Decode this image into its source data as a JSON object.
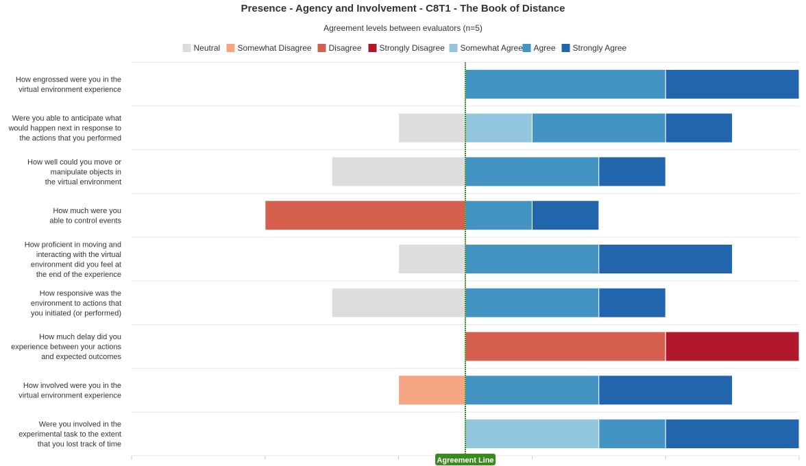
{
  "chart_data": {
    "type": "bar",
    "orientation": "horizontal",
    "stacked": true,
    "diverging": true,
    "title": "Presence - Agency and Involvement - C8T1 - The Book of Distance",
    "subtitle": "Agreement levels between evaluators (n=5)",
    "legend_position": "top",
    "grid": true,
    "xlim": [
      -5,
      5
    ],
    "center_line_label": "Agreement Line",
    "categories": [
      [
        "How engrossed were you in the",
        "virtual environment experience"
      ],
      [
        "Were you able to anticipate what",
        "would happen next in response to",
        "the actions that you performed"
      ],
      [
        "How well could you move or",
        "manipulate objects in",
        "the virtual environment"
      ],
      [
        "How much were you",
        "able to control events"
      ],
      [
        "How proficient in moving and",
        "interacting with the virtual",
        "environment did you feel at",
        "the end of the experience"
      ],
      [
        "How responsive was the",
        "environment to actions that",
        "you initiated (or performed)"
      ],
      [
        "How much delay did you",
        "experience between your actions",
        "and expected outcomes"
      ],
      [
        "How involved were you in the",
        "virtual environment experience"
      ],
      [
        "Were you involved in the",
        "experimental task to the extent",
        "that you lost track of time"
      ]
    ],
    "series": [
      {
        "name": "Neutral",
        "side": "left",
        "color": "#dddddd",
        "values": [
          0,
          1,
          2,
          0,
          1,
          2,
          0,
          0,
          0
        ]
      },
      {
        "name": "Somewhat Disagree",
        "side": "left",
        "color": "#f4a582",
        "values": [
          0,
          0,
          0,
          0,
          0,
          0,
          0,
          1,
          0
        ]
      },
      {
        "name": "Disagree",
        "side": "left",
        "color": "#d6604d",
        "values": [
          0,
          0,
          0,
          3,
          0,
          0,
          0,
          0,
          0
        ]
      },
      {
        "name": "Strongly Disagree",
        "side": "left",
        "color": "#b2182b",
        "values": [
          0,
          0,
          0,
          0,
          0,
          0,
          0,
          0,
          0
        ]
      },
      {
        "name": "Somewhat Agree",
        "side": "right",
        "color": "#92c5de",
        "values": [
          0,
          1,
          0,
          0,
          0,
          0,
          0,
          0,
          2
        ]
      },
      {
        "name": "Agree",
        "side": "right",
        "color": "#4393c3",
        "values": [
          3,
          2,
          2,
          1,
          2,
          2,
          0,
          2,
          1
        ]
      },
      {
        "name": "Strongly Agree",
        "side": "right",
        "color": "#2166ac",
        "values": [
          2,
          1,
          1,
          1,
          2,
          1,
          0,
          2,
          2
        ]
      }
    ],
    "right_overrides": [
      {
        "category_index": 6,
        "segments": [
          {
            "series": "Disagree",
            "value": 3,
            "color": "#d6604d"
          },
          {
            "series": "Strongly Disagree",
            "value": 2,
            "color": "#b2182b"
          }
        ]
      }
    ]
  }
}
